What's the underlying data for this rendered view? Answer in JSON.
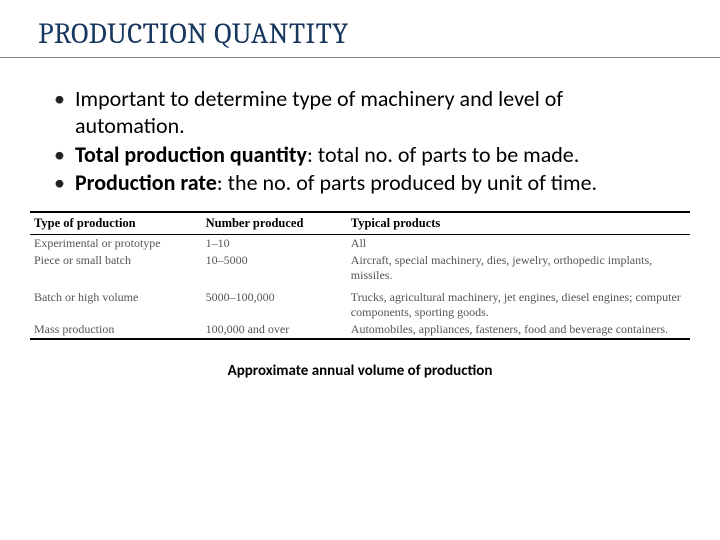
{
  "title": "PRODUCTION QUANTITY",
  "bullets": [
    {
      "prefix": "",
      "bold": "",
      "rest": "Important to determine type of machinery and level of automation."
    },
    {
      "prefix": "",
      "bold": "Total production quantity",
      "rest": ": total no. of parts to be made."
    },
    {
      "prefix": "",
      "bold": "Production rate",
      "rest": ": the no. of parts produced by unit of time."
    }
  ],
  "table": {
    "columns": [
      "Type of production",
      "Number produced",
      "Typical products"
    ],
    "rows": [
      [
        "Experimental or prototype",
        "1–10",
        "All"
      ],
      [
        "Piece or small batch",
        "10–5000",
        "Aircraft, special machinery, dies, jewelry, orthopedic implants, missiles."
      ],
      [
        "Batch or high volume",
        "5000–100,000",
        "Trucks, agricultural machinery, jet engines, diesel engines; computer components, sporting goods."
      ],
      [
        "Mass production",
        "100,000 and over",
        "Automobiles, appliances, fasteners, food and beverage containers."
      ]
    ],
    "col_widths": [
      "26%",
      "22%",
      "52%"
    ],
    "header_fontsize": 12.5,
    "cell_fontsize": 12,
    "cell_color": "#555555",
    "border_color": "#000000"
  },
  "caption": "Approximate annual volume of production",
  "colors": {
    "title": "#17375e",
    "text": "#000000",
    "underline": "#888888",
    "background": "#ffffff"
  },
  "fonts": {
    "title_family": "Cambria, Georgia, serif",
    "body_family": "Calibri, Arial, sans-serif",
    "table_family": "Times New Roman, serif",
    "title_size": 29,
    "bullet_size": 22,
    "caption_size": 15
  }
}
